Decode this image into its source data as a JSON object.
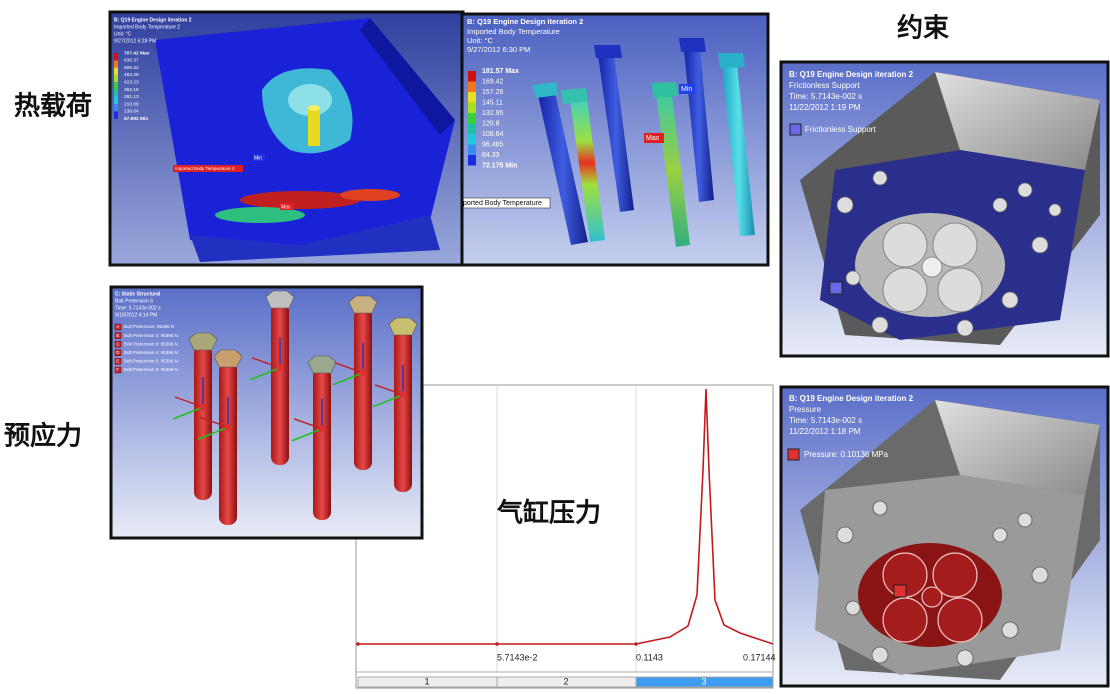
{
  "labels": {
    "thermal_load": "热载荷",
    "pretension": "预应力",
    "constraint": "约束",
    "cylinder_pressure": "气缸压力"
  },
  "thermal_panel_1": {
    "title": "B: Q19 Engine Design iteration 2",
    "subtitle": "Imported Body Temperature 2",
    "unit": "Unit: °C",
    "date": "9/27/2012 6:28 PM",
    "legend": [
      "707.42 Max",
      "636.37",
      "565.32",
      "494.28",
      "423.23",
      "352.18",
      "281.13",
      "210.09",
      "139.04",
      "67.992 Min"
    ],
    "probe": "Imported Body Temperature 2",
    "min": "Min",
    "max": "Max"
  },
  "thermal_panel_2": {
    "title": "B: Q19 Engine Design iteration 2",
    "subtitle": "Imported Body Temperature",
    "unit": "Unit: °C",
    "date": "9/27/2012 6:30 PM",
    "legend": [
      "181.57 Max",
      "169.42",
      "157.26",
      "145.11",
      "132.95",
      "120.8",
      "108.64",
      "96.485",
      "84.33",
      "72.175 Min"
    ],
    "probe": "ported Body Temperature",
    "min": "Min",
    "max": "Max"
  },
  "bolt_panel": {
    "title": "C: Static Structural",
    "subtitle": "Bolt Pretension 6",
    "time": "Time: 5.7143e-002 s",
    "date": "9/18/2012 4:14 PM",
    "legend": [
      {
        "key": "A",
        "text": "Bolt Pretension: 95396 N"
      },
      {
        "key": "B",
        "text": "Bolt Pretension 2: 95396 N"
      },
      {
        "key": "C",
        "text": "Bolt Pretension 3: 95396 N"
      },
      {
        "key": "D",
        "text": "Bolt Pretension 4: 95396 N"
      },
      {
        "key": "E",
        "text": "Bolt Pretension 5: 95396 N"
      },
      {
        "key": "F",
        "text": "Bolt Pretension 6: 95396 N"
      }
    ]
  },
  "pressure_plot": {
    "x_tick_labels": [
      "5.7143e-2",
      "0.1143",
      "0.17144"
    ],
    "tabs": [
      "1",
      "2",
      "3"
    ]
  },
  "support_panel": {
    "title": "B: Q19 Engine Design iteration 2",
    "subtitle": "Frictionless Support",
    "time": "Time: 5.7143e-002 s",
    "date": "11/22/2012 1:19 PM",
    "legend": "Frictionless Support"
  },
  "pressure_panel": {
    "title": "B: Q19 Engine Design iteration 2",
    "subtitle": "Pressure",
    "time": "Time: 5.7143e-002 s",
    "date": "11/22/2012 1:18 PM",
    "legend": "Pressure: 0.10136 MPa"
  }
}
